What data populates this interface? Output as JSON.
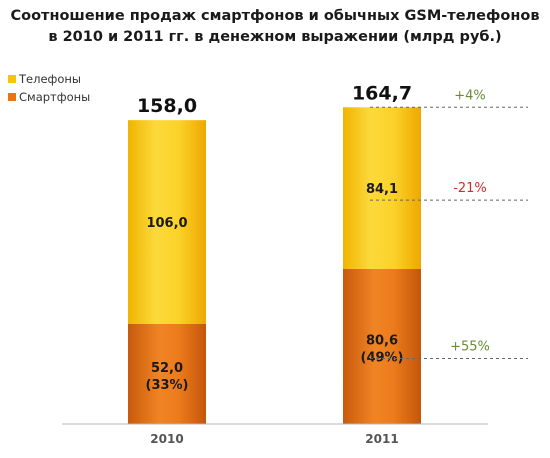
{
  "chart_data": {
    "type": "bar",
    "stacked": true,
    "title_line1": "Соотношение продаж смартфонов и обычных GSM-телефонов",
    "title_line2": "в 2010 и 2011 гг. в денежном выражении (млрд руб.)",
    "categories": [
      "2010",
      "2011"
    ],
    "series": [
      {
        "name": "Смартфоны",
        "color": "#e8741a",
        "values": [
          52.0,
          80.6
        ],
        "labels": [
          "52,0",
          "80,6"
        ],
        "share_labels": [
          "(33%)",
          "(49%)"
        ]
      },
      {
        "name": "Телефоны",
        "color": "#f5c411",
        "values": [
          106.0,
          84.1
        ],
        "labels": [
          "106,0",
          "84,1"
        ],
        "share_labels": [
          "",
          ""
        ]
      }
    ],
    "totals": [
      158.0,
      164.7
    ],
    "total_labels": [
      "158,0",
      "164,7"
    ],
    "changes": [
      {
        "label": "+4%",
        "at": "total",
        "color": "#6a8a3a"
      },
      {
        "label": "-21%",
        "at": "Телефоны",
        "color": "#d02a2a"
      },
      {
        "label": "+55%",
        "at": "Смартфоны",
        "color": "#6a8a3a"
      }
    ],
    "ylim": [
      0,
      175
    ],
    "grid": false,
    "legend_position": "top-left"
  }
}
